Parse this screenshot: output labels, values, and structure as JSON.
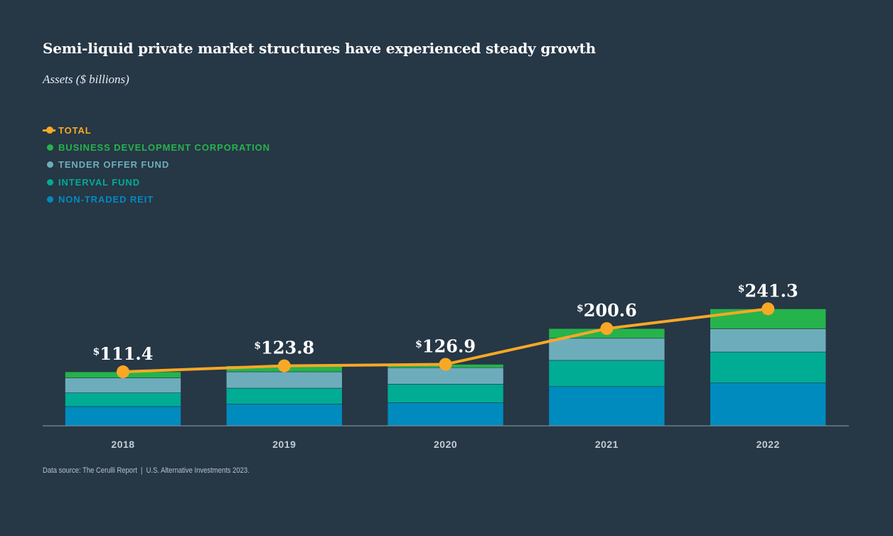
{
  "chart_data": {
    "type": "bar",
    "stacked": true,
    "title": "Semi-liquid private market structures have experienced steady growth",
    "subtitle": "Assets ($ billions)",
    "xlabel": "",
    "ylabel": "",
    "categories": [
      "2018",
      "2019",
      "2020",
      "2021",
      "2022"
    ],
    "series": [
      {
        "name": "NON-TRADED REIT",
        "color": "#008bbf",
        "values": [
          39.8,
          44.7,
          47.6,
          81.0,
          88.4
        ]
      },
      {
        "name": "INTERVAL FUND",
        "color": "#00ac94",
        "values": [
          28.2,
          33.0,
          38.4,
          54.1,
          64.0
        ]
      },
      {
        "name": "TENDER OFFER FUND",
        "color": "#6dadbb",
        "values": [
          31.0,
          33.7,
          34.0,
          45.6,
          47.9
        ]
      },
      {
        "name": "BUSINESS DEVELOPMENT CORPORATION",
        "color": "#26b34b",
        "values": [
          12.4,
          12.4,
          6.9,
          19.9,
          41.0
        ]
      }
    ],
    "line": {
      "name": "TOTAL",
      "color": "#f9a826",
      "values": [
        111.4,
        123.8,
        126.9,
        200.6,
        241.3
      ],
      "labels": [
        "111.4",
        "123.8",
        "126.9",
        "200.6",
        "241.3"
      ],
      "currency_symbol": "$"
    },
    "ylim": [
      0,
      260
    ],
    "grid": false,
    "legend_position": "top-left"
  },
  "legend": [
    {
      "label": "TOTAL",
      "color": "#f9a826",
      "marker": "line"
    },
    {
      "label": "BUSINESS DEVELOPMENT CORPORATION",
      "color": "#26b34b",
      "marker": "dot"
    },
    {
      "label": "TENDER OFFER FUND",
      "color": "#6dadbb",
      "marker": "dot"
    },
    {
      "label": "INTERVAL FUND",
      "color": "#00ac94",
      "marker": "dot"
    },
    {
      "label": "NON-TRADED REIT",
      "color": "#008bbf",
      "marker": "dot"
    }
  ],
  "footer": {
    "source": "Data source: The Cerulli Report",
    "separator": "|",
    "publication": "U.S. Alternative Investments 2023."
  }
}
